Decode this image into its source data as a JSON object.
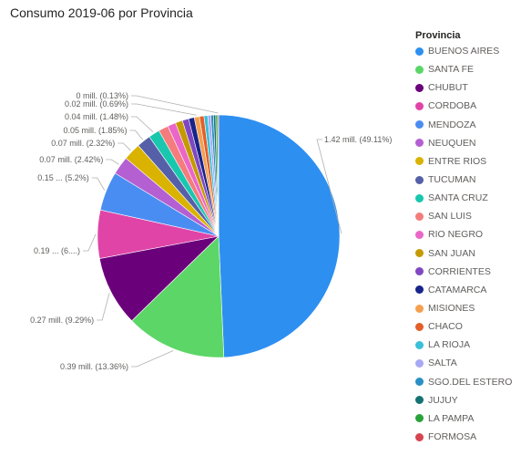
{
  "visual": {
    "title": "Consumo 2019-06 por Provincia"
  },
  "chart_data": {
    "type": "pie",
    "title": "Consumo 2019-06 por Provincia",
    "legend_title": "Provincia",
    "legend_position": "right",
    "start_angle_deg": 0,
    "direction": "clockwise",
    "slices": [
      {
        "name": "BUENOS AIRES",
        "value": 1.42,
        "percent": 49.11,
        "color": "#2D8FF0",
        "label": "1.42 mill. (49.11%)"
      },
      {
        "name": "SANTA FE",
        "value": 0.39,
        "percent": 13.36,
        "color": "#5BD667",
        "label": "0.39 mill. (13.36%)"
      },
      {
        "name": "CHUBUT",
        "value": 0.27,
        "percent": 9.29,
        "color": "#6B007B",
        "label": "0.27 mill. (9.29%)"
      },
      {
        "name": "CORDOBA",
        "value": 0.19,
        "percent": 6.4,
        "color": "#E044A7",
        "label": "0.19 ... (6....)"
      },
      {
        "name": "MENDOZA",
        "value": 0.15,
        "percent": 5.2,
        "color": "#4A8DF2",
        "label": "0.15 ... (5.2%)"
      },
      {
        "name": "NEUQUEN",
        "value": 0.07,
        "percent": 2.42,
        "color": "#B45FD2",
        "label": "0.07 mill. (2.42%)"
      },
      {
        "name": "ENTRE RIOS",
        "value": 0.07,
        "percent": 2.32,
        "color": "#D9B300",
        "label": "0.07 mill. (2.32%)"
      },
      {
        "name": "TUCUMAN",
        "value": 0.05,
        "percent": 1.85,
        "color": "#5560A8",
        "label": "0.05 mill. (1.85%)"
      },
      {
        "name": "SANTA CRUZ",
        "value": 0.04,
        "percent": 1.48,
        "color": "#18C7AE",
        "label": "0.04 mill. (1.48%)"
      },
      {
        "name": "SAN LUIS",
        "value": 0.04,
        "percent": 1.3,
        "color": "#F47C7C",
        "label": ""
      },
      {
        "name": "RIO NEGRO",
        "value": 0.03,
        "percent": 1.1,
        "color": "#EA66C8",
        "label": ""
      },
      {
        "name": "SAN JUAN",
        "value": 0.03,
        "percent": 0.95,
        "color": "#C49A00",
        "label": ""
      },
      {
        "name": "CORRIENTES",
        "value": 0.03,
        "percent": 0.85,
        "color": "#7F48C2",
        "label": ""
      },
      {
        "name": "CATAMARCA",
        "value": 0.02,
        "percent": 0.75,
        "color": "#17248A",
        "label": ""
      },
      {
        "name": "MISIONES",
        "value": 0.02,
        "percent": 0.69,
        "color": "#F5A050",
        "label": "0.02 mill. (0.69%)"
      },
      {
        "name": "CHACO",
        "value": 0.02,
        "percent": 0.6,
        "color": "#E35F2A",
        "label": ""
      },
      {
        "name": "LA RIOJA",
        "value": 0.01,
        "percent": 0.5,
        "color": "#3AC0D8",
        "label": ""
      },
      {
        "name": "SALTA",
        "value": 0.01,
        "percent": 0.4,
        "color": "#A7A9F4",
        "label": ""
      },
      {
        "name": "SGO.DEL ESTERO",
        "value": 0.01,
        "percent": 0.35,
        "color": "#2A8FC4",
        "label": ""
      },
      {
        "name": "JUJUY",
        "value": 0.01,
        "percent": 0.3,
        "color": "#167272",
        "label": ""
      },
      {
        "name": "LA PAMPA",
        "value": 0.01,
        "percent": 0.25,
        "color": "#2AA23A",
        "label": ""
      },
      {
        "name": "FORMOSA",
        "value": 0.0,
        "percent": 0.13,
        "color": "#D64550",
        "label": "0 mill. (0.13%)"
      }
    ]
  }
}
